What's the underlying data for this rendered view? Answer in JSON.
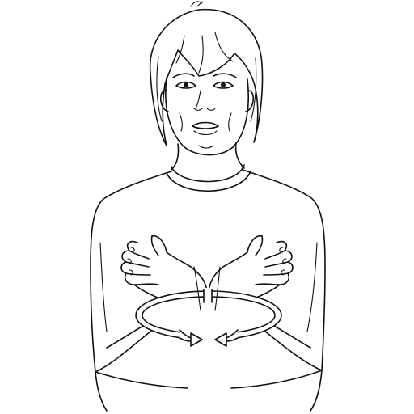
{
  "illustration": {
    "subject": "sign-language-figure",
    "line_color": "#111111",
    "background": "#ffffff",
    "movement": "circular-arrow-around-hands"
  }
}
